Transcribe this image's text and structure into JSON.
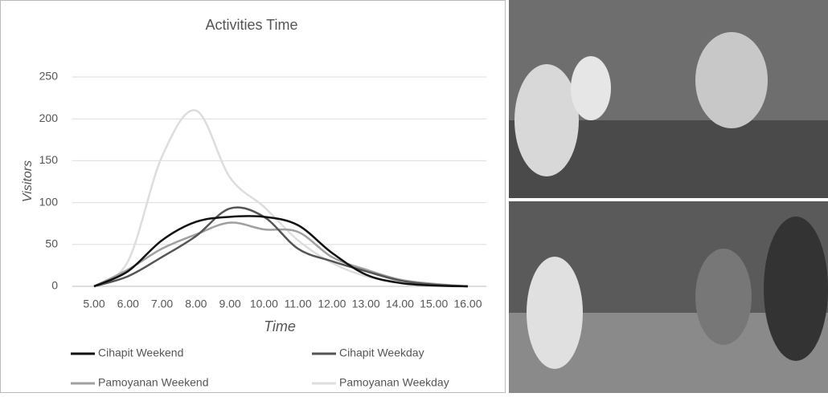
{
  "chart_data": {
    "type": "line",
    "title": "Activities Time",
    "x_label": "Time",
    "y_label": "Visitors",
    "x": [
      5,
      6,
      7,
      8,
      9,
      10,
      11,
      12,
      13,
      14,
      15,
      16
    ],
    "series": [
      {
        "name": "Cihapit Weekend",
        "color": "#111111",
        "values": [
          0,
          18,
          55,
          77,
          83,
          83,
          73,
          40,
          14,
          4,
          1,
          0
        ]
      },
      {
        "name": "Cihapit Weekday",
        "color": "#555555",
        "values": [
          0,
          12,
          35,
          60,
          93,
          83,
          45,
          30,
          18,
          7,
          2,
          0
        ]
      },
      {
        "name": "Pamoyanan Weekend",
        "color": "#a0a0a0",
        "values": [
          0,
          20,
          45,
          62,
          76,
          68,
          65,
          35,
          20,
          8,
          3,
          0
        ]
      },
      {
        "name": "Pamoyanan Weekday",
        "color": "#dddddd",
        "values": [
          0,
          30,
          155,
          210,
          130,
          95,
          55,
          28,
          12,
          5,
          2,
          0
        ]
      }
    ],
    "xlim": [
      5,
      16
    ],
    "xticks": [
      {
        "value": 5,
        "label": "5.00"
      },
      {
        "value": 6,
        "label": "6.00"
      },
      {
        "value": 7,
        "label": "7.00"
      },
      {
        "value": 8,
        "label": "8.00"
      },
      {
        "value": 9,
        "label": "9.00"
      },
      {
        "value": 10,
        "label": "10.00"
      },
      {
        "value": 11,
        "label": "11.00"
      },
      {
        "value": 12,
        "label": "12.00"
      },
      {
        "value": 13,
        "label": "13.00"
      },
      {
        "value": 14,
        "label": "14.00"
      },
      {
        "value": 15,
        "label": "15.00"
      },
      {
        "value": 16,
        "label": "16.00"
      }
    ],
    "ylim": [
      0,
      250
    ],
    "yticks": [
      0,
      50,
      100,
      150,
      200,
      250
    ],
    "grid": true,
    "legend": "bottom"
  }
}
